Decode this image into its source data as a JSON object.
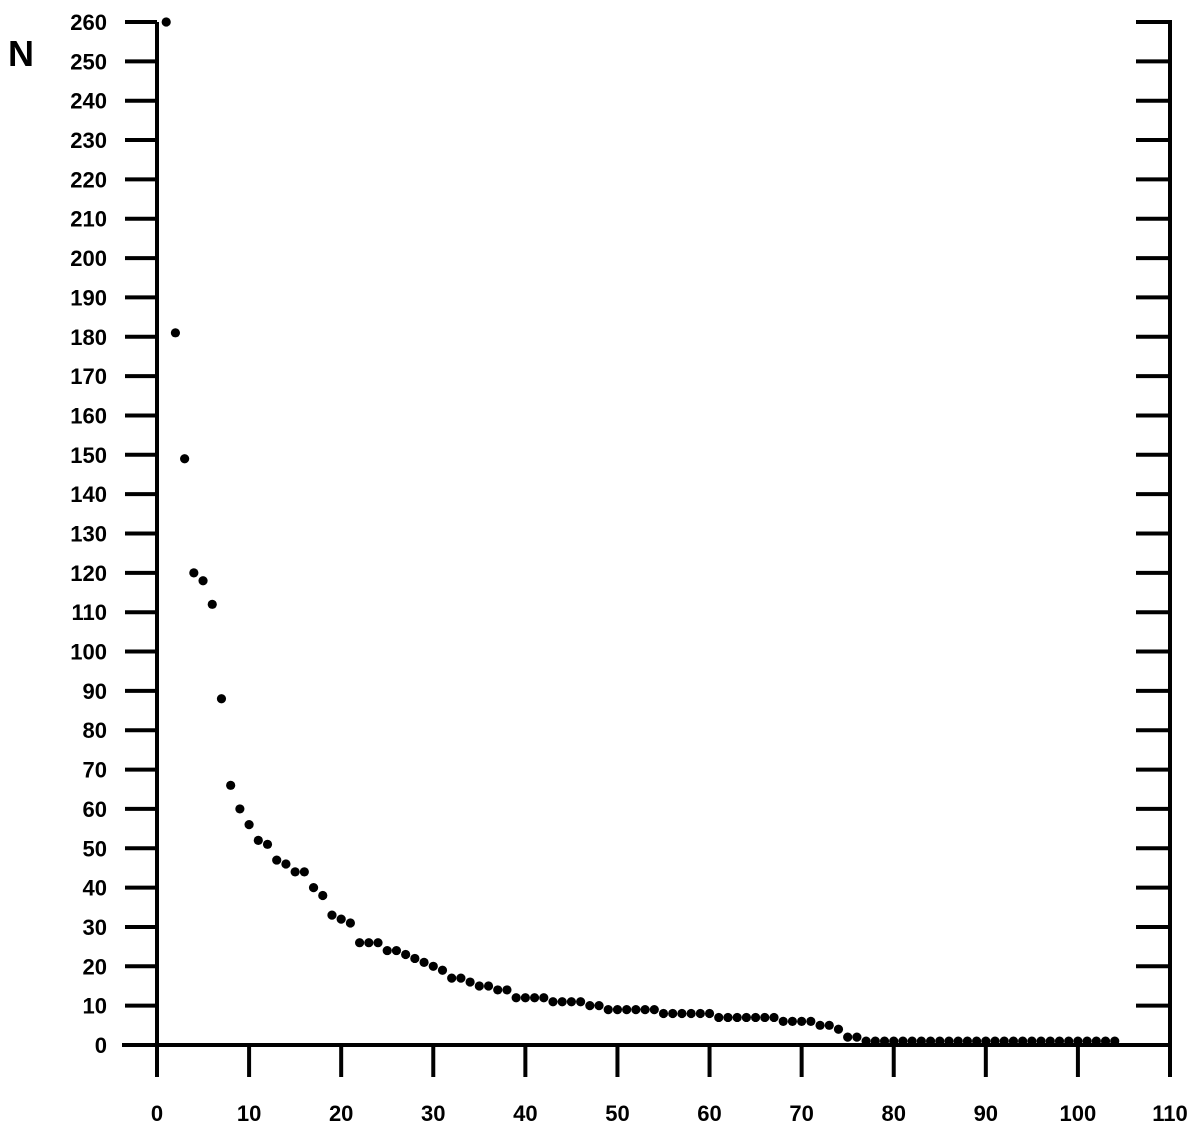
{
  "chart_data": {
    "type": "scatter",
    "title": "",
    "xlabel": "",
    "ylabel": "N",
    "xlim": [
      0,
      110
    ],
    "ylim": [
      0,
      260
    ],
    "x_ticks": [
      "0",
      "10",
      "20",
      "30",
      "40",
      "50",
      "60",
      "70",
      "80",
      "90",
      "100",
      "110"
    ],
    "y_ticks": [
      "0",
      "10",
      "20",
      "30",
      "40",
      "50",
      "60",
      "70",
      "80",
      "90",
      "100",
      "110",
      "120",
      "130",
      "140",
      "150",
      "160",
      "170",
      "180",
      "190",
      "200",
      "210",
      "220",
      "230",
      "240",
      "250",
      "260"
    ],
    "grid": false,
    "legend": "none",
    "marker_color": "#000000",
    "series": [
      {
        "x": [
          1,
          2,
          3,
          4,
          5,
          6,
          7,
          8,
          9,
          10,
          11,
          12,
          13,
          14,
          15,
          16,
          17,
          18,
          19,
          20,
          21,
          22,
          23,
          24,
          25,
          26,
          27,
          28,
          29,
          30,
          31,
          32,
          33,
          34,
          35,
          36,
          37,
          38,
          39,
          40,
          41,
          42,
          43,
          44,
          45,
          46,
          47,
          48,
          49,
          50,
          51,
          52,
          53,
          54,
          55,
          56,
          57,
          58,
          59,
          60,
          61,
          62,
          63,
          64,
          65,
          66,
          67,
          68,
          69,
          70,
          71,
          72,
          73,
          74,
          75,
          76,
          77,
          78,
          79,
          80,
          81,
          82,
          83,
          84,
          85,
          86,
          87,
          88,
          89,
          90,
          91,
          92,
          93,
          94,
          95,
          96,
          97,
          98,
          99,
          100,
          101,
          102,
          103,
          104
        ],
        "y": [
          260,
          181,
          149,
          120,
          118,
          112,
          88,
          66,
          60,
          56,
          52,
          51,
          47,
          46,
          44,
          44,
          40,
          38,
          33,
          32,
          31,
          26,
          26,
          26,
          24,
          24,
          23,
          22,
          21,
          20,
          19,
          17,
          17,
          16,
          15,
          15,
          14,
          14,
          12,
          12,
          12,
          12,
          11,
          11,
          11,
          11,
          10,
          10,
          9,
          9,
          9,
          9,
          9,
          9,
          8,
          8,
          8,
          8,
          8,
          8,
          7,
          7,
          7,
          7,
          7,
          7,
          7,
          6,
          6,
          6,
          6,
          5,
          5,
          4,
          2,
          2,
          1,
          1,
          1,
          1,
          1,
          1,
          1,
          1,
          1,
          1,
          1,
          1,
          1,
          1,
          1,
          1,
          1,
          1,
          1,
          1,
          1,
          1,
          1,
          1,
          1,
          1,
          1,
          1
        ]
      }
    ]
  }
}
